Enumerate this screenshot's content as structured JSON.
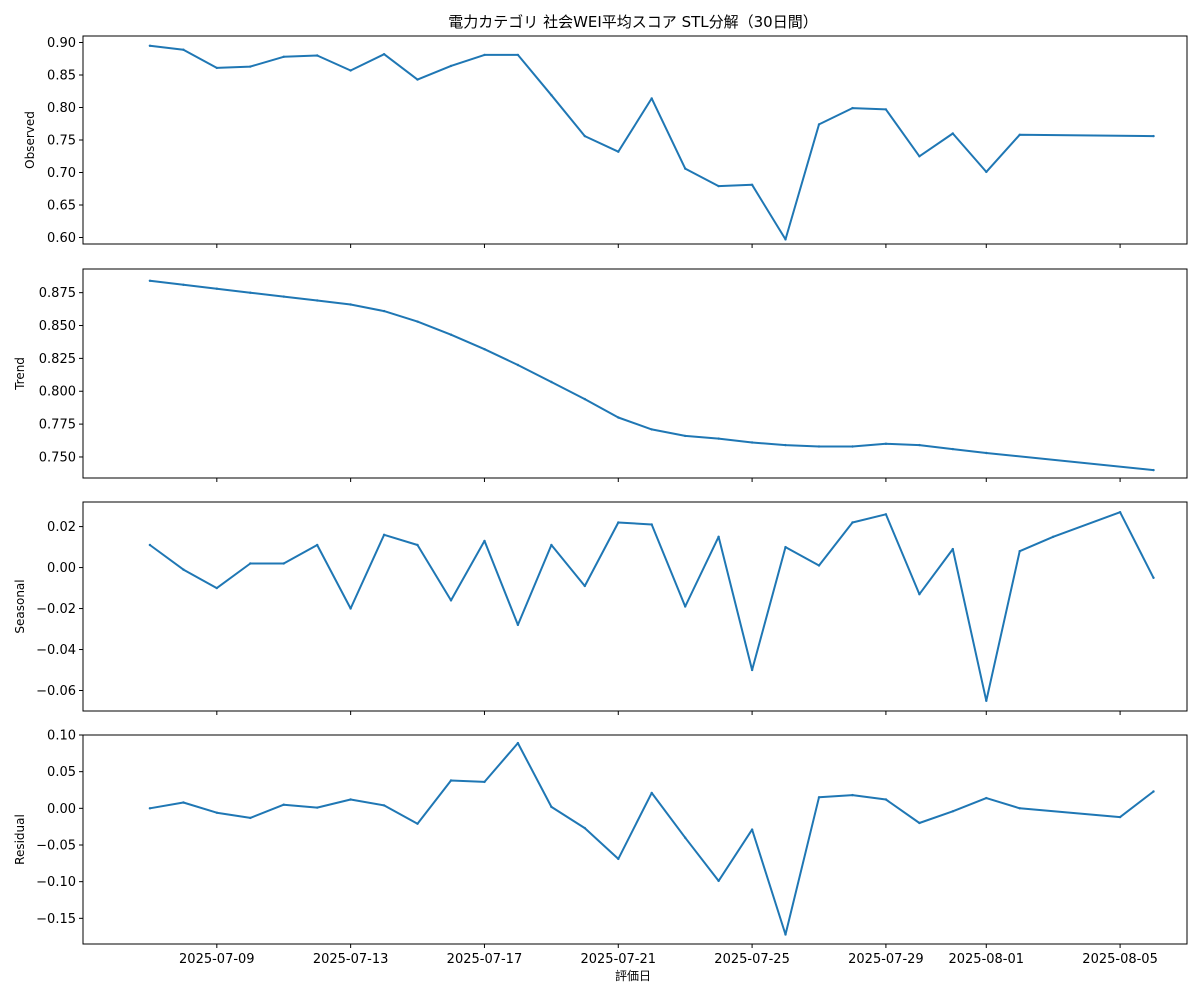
{
  "title": "電力カテゴリ 社会WEI平均スコア STL分解（30日間）",
  "xlabel": "評価日",
  "colors": {
    "line": "#1f77b4",
    "axis": "#000000"
  },
  "chart_data": [
    {
      "type": "line",
      "ylabel": "Observed",
      "ylim": [
        0.59,
        0.91
      ],
      "yticks": [
        "0.60",
        "0.65",
        "0.70",
        "0.75",
        "0.80",
        "0.85",
        "0.90"
      ],
      "x": [
        "2025-07-07",
        "2025-07-08",
        "2025-07-09",
        "2025-07-10",
        "2025-07-11",
        "2025-07-12",
        "2025-07-13",
        "2025-07-14",
        "2025-07-15",
        "2025-07-16",
        "2025-07-17",
        "2025-07-18",
        "2025-07-19",
        "2025-07-20",
        "2025-07-21",
        "2025-07-22",
        "2025-07-23",
        "2025-07-24",
        "2025-07-25",
        "2025-07-26",
        "2025-07-27",
        "2025-07-28",
        "2025-07-29",
        "2025-07-30",
        "2025-07-31",
        "2025-08-01",
        "2025-08-02",
        "2025-08-06"
      ],
      "values": [
        0.895,
        0.889,
        0.861,
        0.863,
        0.878,
        0.88,
        0.857,
        0.882,
        0.843,
        0.864,
        0.881,
        0.881,
        0.819,
        0.756,
        0.732,
        0.814,
        0.706,
        0.679,
        0.681,
        0.597,
        0.774,
        0.799,
        0.797,
        0.725,
        0.76,
        0.701,
        0.758,
        0.756
      ]
    },
    {
      "type": "line",
      "ylabel": "Trend",
      "ylim": [
        0.734,
        0.893
      ],
      "yticks": [
        "0.750",
        "0.775",
        "0.800",
        "0.825",
        "0.850",
        "0.875"
      ],
      "x": [
        "2025-07-07",
        "2025-07-08",
        "2025-07-09",
        "2025-07-10",
        "2025-07-11",
        "2025-07-12",
        "2025-07-13",
        "2025-07-14",
        "2025-07-15",
        "2025-07-16",
        "2025-07-17",
        "2025-07-18",
        "2025-07-19",
        "2025-07-20",
        "2025-07-21",
        "2025-07-22",
        "2025-07-23",
        "2025-07-24",
        "2025-07-25",
        "2025-07-26",
        "2025-07-27",
        "2025-07-28",
        "2025-07-29",
        "2025-07-30",
        "2025-07-31",
        "2025-08-01",
        "2025-08-06"
      ],
      "values": [
        0.884,
        0.881,
        0.878,
        0.875,
        0.872,
        0.869,
        0.866,
        0.861,
        0.853,
        0.843,
        0.832,
        0.82,
        0.807,
        0.794,
        0.78,
        0.771,
        0.766,
        0.764,
        0.761,
        0.759,
        0.758,
        0.758,
        0.76,
        0.759,
        0.756,
        0.753,
        0.74
      ]
    },
    {
      "type": "line",
      "ylabel": "Seasonal",
      "ylim": [
        -0.07,
        0.032
      ],
      "yticks": [
        "−0.06",
        "−0.04",
        "−0.02",
        "0.00",
        "0.02"
      ],
      "x": [
        "2025-07-07",
        "2025-07-08",
        "2025-07-09",
        "2025-07-10",
        "2025-07-11",
        "2025-07-12",
        "2025-07-13",
        "2025-07-14",
        "2025-07-15",
        "2025-07-16",
        "2025-07-17",
        "2025-07-18",
        "2025-07-19",
        "2025-07-20",
        "2025-07-21",
        "2025-07-22",
        "2025-07-23",
        "2025-07-24",
        "2025-07-25",
        "2025-07-26",
        "2025-07-27",
        "2025-07-28",
        "2025-07-29",
        "2025-07-30",
        "2025-07-31",
        "2025-08-01",
        "2025-08-02",
        "2025-08-03",
        "2025-08-05",
        "2025-08-06"
      ],
      "values": [
        0.011,
        -0.001,
        -0.01,
        0.002,
        0.002,
        0.011,
        -0.02,
        0.016,
        0.011,
        -0.016,
        0.013,
        -0.028,
        0.011,
        -0.009,
        0.022,
        0.021,
        -0.019,
        0.015,
        -0.05,
        0.01,
        0.001,
        0.022,
        0.026,
        -0.013,
        0.009,
        -0.065,
        0.008,
        0.015,
        0.027,
        -0.005
      ]
    },
    {
      "type": "line",
      "ylabel": "Residual",
      "ylim": [
        -0.185,
        0.1
      ],
      "yticks": [
        "−0.15",
        "−0.10",
        "−0.05",
        "0.00",
        "0.05",
        "0.10"
      ],
      "x": [
        "2025-07-07",
        "2025-07-08",
        "2025-07-09",
        "2025-07-10",
        "2025-07-11",
        "2025-07-12",
        "2025-07-13",
        "2025-07-14",
        "2025-07-15",
        "2025-07-16",
        "2025-07-17",
        "2025-07-18",
        "2025-07-19",
        "2025-07-20",
        "2025-07-21",
        "2025-07-22",
        "2025-07-23",
        "2025-07-24",
        "2025-07-25",
        "2025-07-26",
        "2025-07-27",
        "2025-07-28",
        "2025-07-29",
        "2025-07-30",
        "2025-07-31",
        "2025-08-01",
        "2025-08-02",
        "2025-08-05",
        "2025-08-06"
      ],
      "values": [
        0.0,
        0.008,
        -0.006,
        -0.013,
        0.005,
        0.001,
        0.012,
        0.004,
        -0.021,
        0.038,
        0.036,
        0.089,
        0.002,
        -0.027,
        -0.069,
        0.021,
        -0.04,
        -0.099,
        -0.029,
        -0.172,
        0.015,
        0.018,
        0.012,
        -0.02,
        -0.004,
        0.014,
        0.0,
        -0.012,
        0.023
      ]
    }
  ],
  "xaxis": {
    "range": [
      "2025-07-05",
      "2025-08-07"
    ],
    "ticks": [
      "2025-07-09",
      "2025-07-13",
      "2025-07-17",
      "2025-07-21",
      "2025-07-25",
      "2025-07-29",
      "2025-08-01",
      "2025-08-05"
    ]
  }
}
